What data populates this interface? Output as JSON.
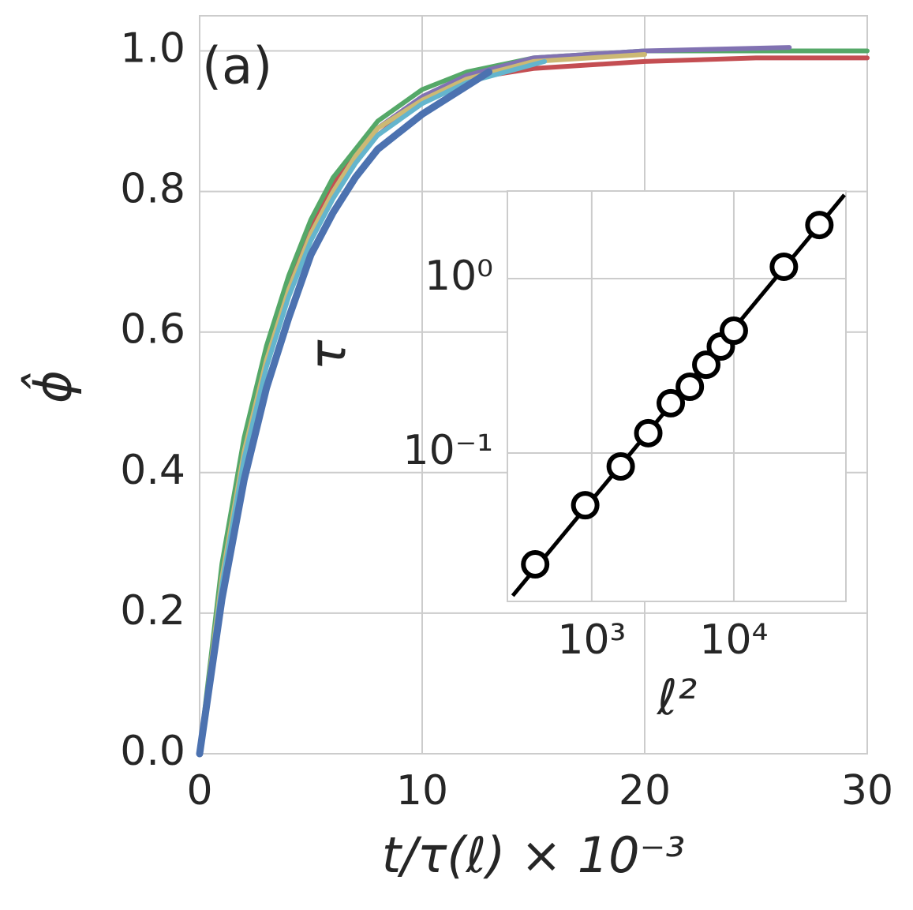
{
  "chart_data": [
    {
      "type": "line",
      "annotation": "(a)",
      "x_label": "t/τ(ℓ) × 10⁻³",
      "y_label": "ϕ̂",
      "xlim": [
        0,
        30
      ],
      "ylim": [
        0,
        1.05
      ],
      "grid": true,
      "xticks": [
        0,
        10,
        20,
        30
      ],
      "yticks": [
        {
          "value": 0,
          "label": "0.0"
        },
        0.2,
        0.4,
        0.6,
        0.8,
        {
          "value": 1,
          "label": "1.0"
        }
      ],
      "series": [
        {
          "color": "#c44e52",
          "x": [
            0,
            1,
            2,
            3,
            4,
            5,
            6,
            7,
            8,
            10,
            12,
            15,
            20,
            25,
            30
          ],
          "values": [
            0,
            0.26,
            0.44,
            0.57,
            0.67,
            0.75,
            0.81,
            0.85,
            0.88,
            0.93,
            0.96,
            0.975,
            0.985,
            0.99,
            0.99
          ]
        },
        {
          "color": "#55a868",
          "x": [
            0,
            1,
            2,
            3,
            4,
            5,
            6,
            7,
            8,
            10,
            12,
            15,
            20,
            25,
            30
          ],
          "values": [
            0,
            0.27,
            0.45,
            0.58,
            0.68,
            0.76,
            0.82,
            0.86,
            0.9,
            0.945,
            0.97,
            0.99,
            1.0,
            1.0,
            1.0
          ]
        },
        {
          "color": "#8172b2",
          "x": [
            0,
            1,
            2,
            3,
            4,
            5,
            6,
            7,
            8,
            10,
            12,
            15,
            20,
            26.5
          ],
          "values": [
            0,
            0.25,
            0.43,
            0.56,
            0.66,
            0.74,
            0.8,
            0.85,
            0.89,
            0.935,
            0.965,
            0.99,
            1.0,
            1.005
          ]
        },
        {
          "color": "#ccb974",
          "x": [
            0,
            1,
            2,
            3,
            4,
            5,
            6,
            7,
            8,
            10,
            12,
            15,
            20
          ],
          "values": [
            0,
            0.25,
            0.43,
            0.56,
            0.66,
            0.74,
            0.8,
            0.85,
            0.89,
            0.93,
            0.96,
            0.985,
            0.995
          ]
        },
        {
          "color": "#64b5cd",
          "x": [
            0,
            1,
            2,
            3,
            4,
            5,
            6,
            7,
            8,
            10,
            12,
            15.5
          ],
          "values": [
            0,
            0.24,
            0.42,
            0.55,
            0.65,
            0.73,
            0.79,
            0.84,
            0.88,
            0.925,
            0.955,
            0.985
          ]
        },
        {
          "color": "#4c72b0",
          "x": [
            0,
            1,
            2,
            3,
            4,
            5,
            6,
            7,
            8,
            10,
            12,
            13
          ],
          "values": [
            0,
            0.22,
            0.39,
            0.52,
            0.62,
            0.71,
            0.77,
            0.82,
            0.86,
            0.91,
            0.95,
            0.97
          ]
        }
      ]
    },
    {
      "type": "scatter",
      "x_label": "ℓ²",
      "y_label": "τ",
      "log_x": true,
      "log_y": true,
      "grid": true,
      "xlim": [
        255,
        61500
      ],
      "ylim": [
        0.0141,
        3.18
      ],
      "xticks": [
        {
          "value": 1000,
          "label": "10³"
        },
        {
          "value": 10000,
          "label": "10⁴"
        }
      ],
      "yticks": [
        {
          "value": 0.1,
          "label": "10⁻¹"
        },
        {
          "value": 1,
          "label": "10⁰"
        }
      ],
      "color": "#000000",
      "x": [
        400,
        900,
        1600,
        2500,
        3600,
        4900,
        6400,
        8100,
        10000,
        22500,
        40000
      ],
      "values": [
        0.023,
        0.0502,
        0.0838,
        0.13,
        0.193,
        0.24,
        0.321,
        0.408,
        0.503,
        1.17,
        2.03
      ],
      "fit": {
        "x": [
          278,
          60000
        ],
        "values": [
          0.0152,
          3.02
        ]
      }
    }
  ]
}
